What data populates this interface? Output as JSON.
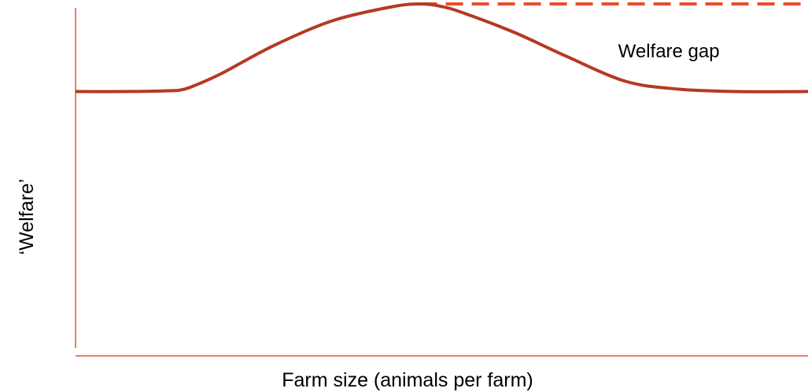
{
  "chart_data": {
    "type": "line",
    "title": "",
    "xlabel": "Farm size (animals per farm)",
    "ylabel": "‘Welfare’",
    "xlim": [
      0,
      100
    ],
    "ylim": [
      0,
      100
    ],
    "ticks": false,
    "grid": false,
    "legend": "none",
    "series": [
      {
        "style": "solid",
        "color": "#b53a22",
        "x": [
          0,
          7,
          13,
          14.5,
          16,
          20,
          27,
          35,
          43,
          47,
          50,
          53,
          60,
          67,
          75,
          82,
          90,
          100
        ],
        "y": [
          65,
          65,
          65.3,
          65.7,
          67,
          72,
          82.5,
          92,
          97.3,
          98.5,
          97.5,
          95,
          87.5,
          78.5,
          69,
          66,
          65,
          65
        ]
      },
      {
        "style": "dashed",
        "color": "#e84e2e",
        "x": [
          47,
          100
        ],
        "y": [
          98.5,
          98.5
        ]
      }
    ],
    "annotations": [
      {
        "text": "Welfare gap",
        "x": 81,
        "y": 80
      }
    ],
    "colors": {
      "axis": "#e8533a",
      "curve": "#b53a22",
      "dashed": "#e84e2e"
    }
  }
}
